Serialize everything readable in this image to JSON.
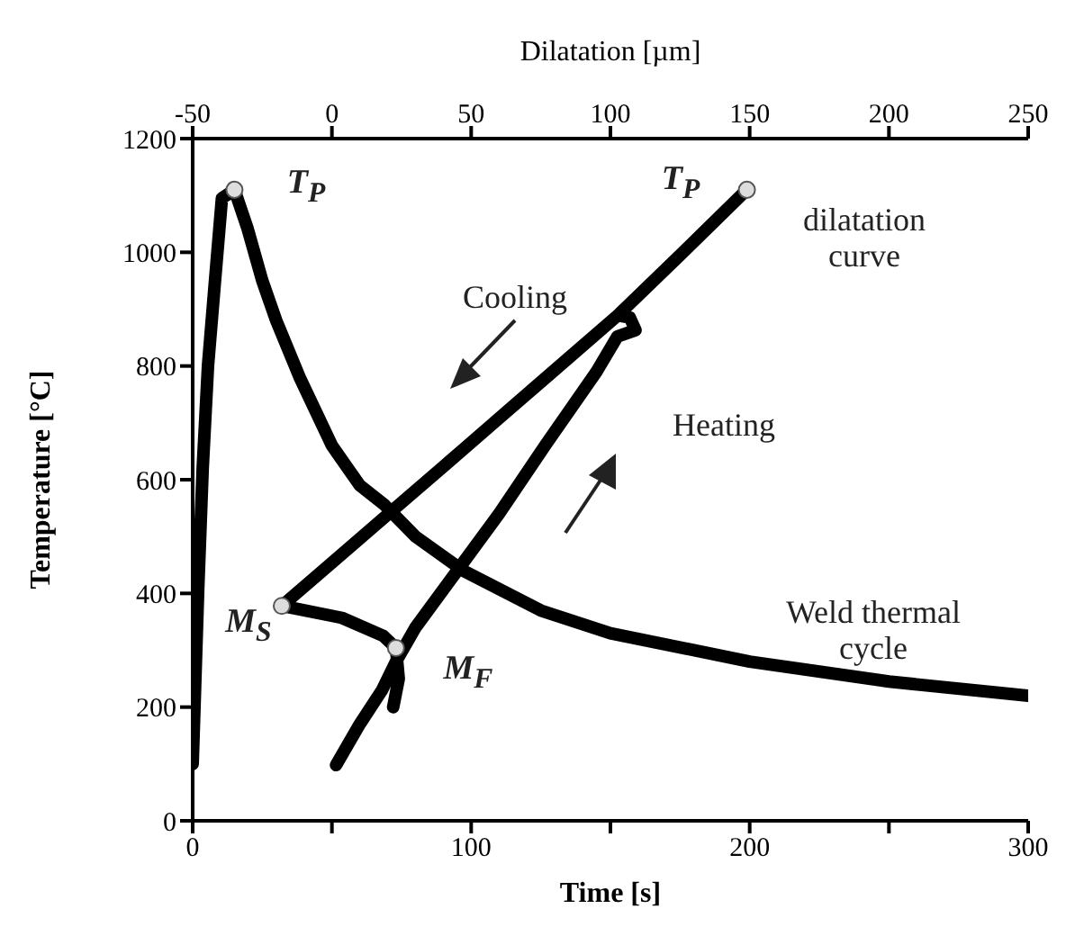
{
  "chart_data": {
    "type": "line",
    "xlabel": "Time [s]",
    "ylabel": "Temperature [°C]",
    "x2label": "Dilatation [µm]",
    "xlim": [
      0,
      300
    ],
    "xticks": [
      0,
      {
        "value": 50,
        "label": null
      },
      100,
      {
        "value": 150,
        "label": null
      },
      200,
      {
        "value": 250,
        "label": null
      },
      300
    ],
    "x2lim": [
      -50,
      250
    ],
    "x2ticks": [
      -50,
      0,
      50,
      100,
      150,
      200,
      250
    ],
    "ylim": [
      0,
      1200
    ],
    "yticks": [
      0,
      200,
      400,
      600,
      800,
      1000,
      1200
    ],
    "grid": false,
    "marker": "none",
    "line_style": "solid",
    "series": [
      {
        "color": "#000000",
        "x": [
          0,
          2,
          3.6,
          5.5,
          7.8,
          10.5,
          15,
          19.7,
          25,
          30,
          38.6,
          50,
          60,
          68.6,
          80,
          96.8,
          125,
          150,
          200,
          250,
          300
        ],
        "values": [
          100,
          409,
          620,
          800,
          937,
          1095,
          1110,
          1042,
          950,
          880,
          778,
          660,
          590,
          557,
          500,
          441,
          370,
          330,
          280,
          245,
          220
        ]
      },
      {
        "axis": "x2",
        "color": "#000000",
        "x": [
          1.5,
          10,
          18,
          23,
          30,
          46.8,
          60,
          76.8,
          95,
          102.5,
          109,
          107,
          102.6,
          125,
          149,
          125,
          102.6,
          80,
          60,
          40,
          18.7,
          0,
          -18,
          3.6,
          18.5,
          23,
          24,
          22
        ],
        "values": [
          98,
          170,
          230,
          280,
          340,
          452,
          540,
          662,
          790,
          852,
          863,
          885,
          889,
          995,
          1110,
          995,
          889,
          793,
          708,
          623,
          533,
          454,
          378,
          357,
          325,
          304,
          250,
          200
        ]
      },
      {
        "type": "scatter",
        "marker": "circle",
        "color": "#dddddd",
        "x": [
          15
        ],
        "values": [
          1110
        ]
      },
      {
        "type": "scatter",
        "axis": "x2",
        "marker": "circle",
        "color": "#dddddd",
        "x": [
          149,
          -18,
          23
        ],
        "values": [
          1110,
          378,
          304
        ]
      }
    ],
    "annotations": [
      "T$_{P}$",
      "T$_{P}$",
      "M$_{S}$",
      "M$_{F}$",
      "Cooling",
      "Heating",
      "dilatation curve",
      "Weld thermal cycle"
    ]
  }
}
